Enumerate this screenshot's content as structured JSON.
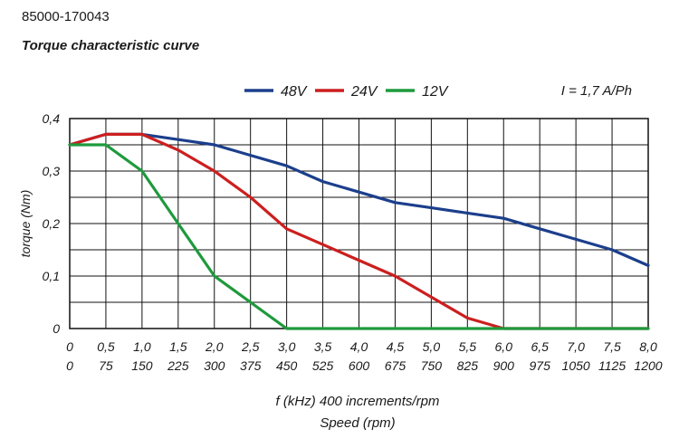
{
  "header": {
    "part_number": "85000-170043",
    "title": "Torque characteristic curve"
  },
  "chart_data": {
    "type": "line",
    "title": "Torque characteristic curve",
    "ylabel": "torque (Nm)",
    "xlabel": "f (kHz) 400 increments/rpm",
    "xlabel2": "Speed (rpm)",
    "current_note": "I = 1,7 A/Ph",
    "xlim": [
      0,
      8
    ],
    "ylim": [
      0,
      0.4
    ],
    "grid": true,
    "legend_position": "top",
    "x_ticks": [
      {
        "f": "0",
        "rpm": "0"
      },
      {
        "f": "0,5",
        "rpm": "75"
      },
      {
        "f": "1,0",
        "rpm": "150"
      },
      {
        "f": "1,5",
        "rpm": "225"
      },
      {
        "f": "2,0",
        "rpm": "300"
      },
      {
        "f": "2,5",
        "rpm": "375"
      },
      {
        "f": "3,0",
        "rpm": "450"
      },
      {
        "f": "3,5",
        "rpm": "525"
      },
      {
        "f": "4,0",
        "rpm": "600"
      },
      {
        "f": "4,5",
        "rpm": "675"
      },
      {
        "f": "5,0",
        "rpm": "750"
      },
      {
        "f": "5,5",
        "rpm": "825"
      },
      {
        "f": "6,0",
        "rpm": "900"
      },
      {
        "f": "6,5",
        "rpm": "975"
      },
      {
        "f": "7,0",
        "rpm": "1050"
      },
      {
        "f": "7,5",
        "rpm": "1125"
      },
      {
        "f": "8,0",
        "rpm": "1200"
      }
    ],
    "y_ticks": [
      "0",
      "0,1",
      "0,2",
      "0,3",
      "0,4"
    ],
    "series": [
      {
        "name": "48V",
        "color": "#1c3f8c",
        "x": [
          0,
          0.5,
          1.0,
          1.5,
          2.0,
          2.5,
          3.0,
          3.5,
          4.0,
          4.5,
          5.0,
          5.5,
          6.0,
          6.5,
          7.0,
          7.5,
          8.0
        ],
        "y": [
          0.35,
          0.37,
          0.37,
          0.36,
          0.35,
          0.33,
          0.31,
          0.28,
          0.26,
          0.24,
          0.23,
          0.22,
          0.21,
          0.19,
          0.17,
          0.15,
          0.12
        ]
      },
      {
        "name": "24V",
        "color": "#cc1f1f",
        "x": [
          0,
          0.5,
          1.0,
          1.5,
          2.0,
          2.5,
          3.0,
          3.5,
          4.0,
          4.5,
          5.0,
          5.5,
          6.0,
          8.0
        ],
        "y": [
          0.35,
          0.37,
          0.37,
          0.34,
          0.3,
          0.25,
          0.19,
          0.16,
          0.13,
          0.1,
          0.06,
          0.02,
          0,
          0
        ]
      },
      {
        "name": "12V",
        "color": "#1e9a3c",
        "x": [
          0,
          0.5,
          1.0,
          1.5,
          2.0,
          2.5,
          3.0,
          8.0
        ],
        "y": [
          0.35,
          0.35,
          0.3,
          0.2,
          0.1,
          0.05,
          0,
          0
        ]
      }
    ]
  }
}
